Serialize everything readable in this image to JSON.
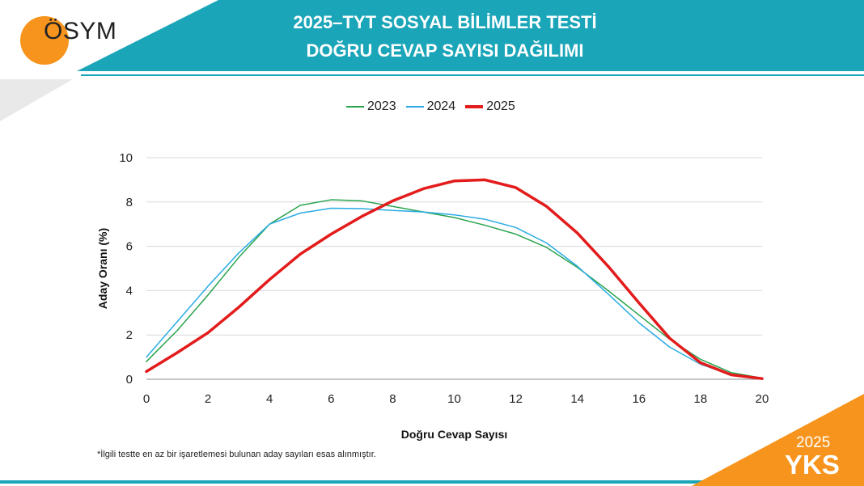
{
  "header": {
    "logo_text": "ÖSYM",
    "title_line1": "2025–TYT SOSYAL BİLİMLER TESTİ",
    "title_line2": "DOĞRU CEVAP SAYISI DAĞILIMI"
  },
  "footer": {
    "note": "*İlgili testte en az bir işaretlemesi bulunan aday sayıları esas alınmıştır.",
    "badge_year": "2025",
    "badge_text": "YKS"
  },
  "colors": {
    "header_teal": "#1aa5b8",
    "orange": "#f7941d",
    "series_2023": "#2aa44f",
    "series_2024": "#29abe2",
    "series_2025": "#e31b1b"
  },
  "chart_data": {
    "type": "line",
    "xlabel": "Doğru Cevap Sayısı",
    "ylabel": "Aday Oranı (%)",
    "xlim": [
      0,
      20
    ],
    "ylim": [
      0,
      10
    ],
    "xticks": [
      "0",
      "2",
      "4",
      "6",
      "8",
      "10",
      "12",
      "14",
      "16",
      "18",
      "20"
    ],
    "yticks": [
      "0",
      "2",
      "4",
      "6",
      "8",
      "10"
    ],
    "grid": "horizontal",
    "legend_position": "top-center",
    "x": [
      0,
      1,
      2,
      3,
      4,
      5,
      6,
      7,
      8,
      9,
      10,
      11,
      12,
      13,
      14,
      15,
      16,
      17,
      18,
      19,
      20
    ],
    "series": [
      {
        "name": "2023",
        "color": "#2aa44f",
        "width": 1.5,
        "values": [
          0.8,
          2.2,
          3.8,
          5.5,
          7.0,
          7.85,
          8.1,
          8.05,
          7.8,
          7.55,
          7.3,
          6.95,
          6.55,
          5.95,
          5.05,
          4.0,
          2.9,
          1.8,
          0.9,
          0.3,
          0.05
        ]
      },
      {
        "name": "2024",
        "color": "#29abe2",
        "width": 1.5,
        "values": [
          1.0,
          2.6,
          4.2,
          5.7,
          7.0,
          7.5,
          7.72,
          7.7,
          7.62,
          7.55,
          7.42,
          7.22,
          6.85,
          6.15,
          5.1,
          3.85,
          2.55,
          1.45,
          0.68,
          0.2,
          0.03
        ]
      },
      {
        "name": "2025",
        "color": "#e31b1b",
        "width": 3.5,
        "values": [
          0.35,
          1.2,
          2.1,
          3.25,
          4.5,
          5.65,
          6.55,
          7.35,
          8.05,
          8.6,
          8.95,
          9.0,
          8.65,
          7.8,
          6.6,
          5.1,
          3.45,
          1.85,
          0.75,
          0.2,
          0.03
        ]
      }
    ]
  }
}
